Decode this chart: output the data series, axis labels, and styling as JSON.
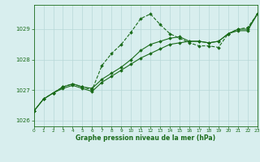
{
  "xlabel": "Graphe pression niveau de la mer (hPa)",
  "xlim": [
    0,
    23
  ],
  "ylim": [
    1025.8,
    1029.8
  ],
  "yticks": [
    1026,
    1027,
    1028,
    1029
  ],
  "xticks": [
    0,
    1,
    2,
    3,
    4,
    5,
    6,
    7,
    8,
    9,
    10,
    11,
    12,
    13,
    14,
    15,
    16,
    17,
    18,
    19,
    20,
    21,
    22,
    23
  ],
  "bg_color": "#d8eeee",
  "grid_color": "#b8d8d8",
  "line_color": "#1a6b1a",
  "series1": [
    1026.3,
    1026.7,
    1026.9,
    1027.1,
    1027.2,
    1027.1,
    1027.0,
    1027.8,
    1028.2,
    1028.5,
    1028.9,
    1029.35,
    1029.5,
    1029.15,
    1028.85,
    1028.7,
    1028.55,
    1028.45,
    1028.45,
    1028.4,
    1028.85,
    1029.0,
    1029.05,
    1029.5
  ],
  "series2": [
    1026.3,
    1026.7,
    1026.9,
    1027.1,
    1027.2,
    1027.1,
    1027.05,
    1027.35,
    1027.55,
    1027.75,
    1028.0,
    1028.3,
    1028.5,
    1028.6,
    1028.7,
    1028.75,
    1028.6,
    1028.6,
    1028.55,
    1028.6,
    1028.85,
    1029.0,
    1029.0,
    1029.5
  ],
  "series3": [
    1026.3,
    1026.7,
    1026.9,
    1027.05,
    1027.15,
    1027.05,
    1026.95,
    1027.25,
    1027.45,
    1027.65,
    1027.85,
    1028.05,
    1028.2,
    1028.35,
    1028.5,
    1028.55,
    1028.6,
    1028.6,
    1028.55,
    1028.6,
    1028.85,
    1028.95,
    1028.95,
    1029.5
  ]
}
